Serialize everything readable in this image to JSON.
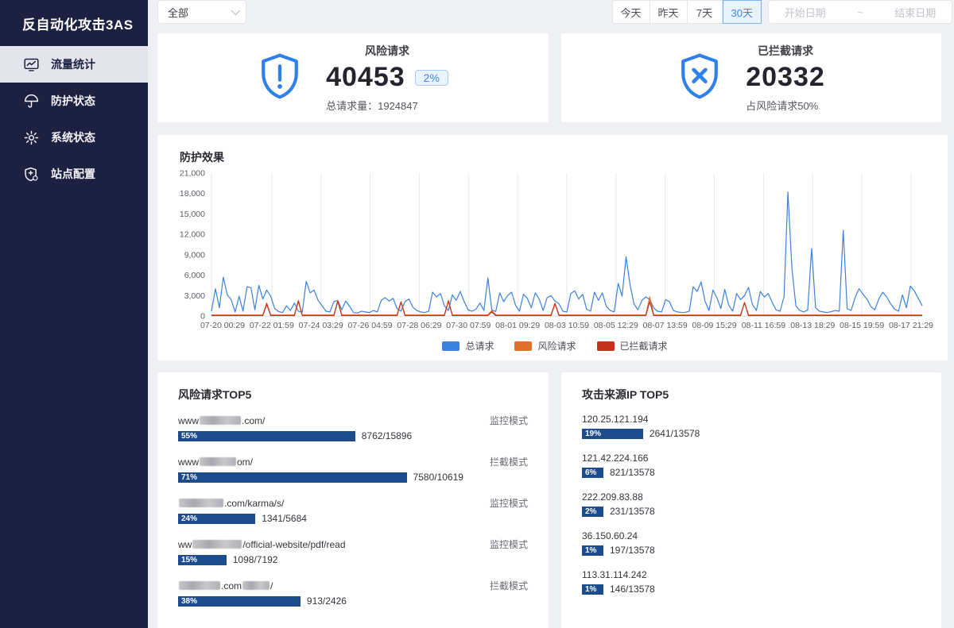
{
  "colors": {
    "accent_blue": "#3a86e8",
    "bar_navy": "#1c4c8c",
    "sidebar_bg": "#1c2142"
  },
  "sidebar": {
    "title": "反自动化攻击3AS",
    "items": [
      {
        "label": "流量统计",
        "icon": "traffic-stats-icon",
        "active": true
      },
      {
        "label": "防护状态",
        "icon": "umbrella-icon",
        "active": false
      },
      {
        "label": "系统状态",
        "icon": "gear-icon",
        "active": false
      },
      {
        "label": "站点配置",
        "icon": "site-config-icon",
        "active": false
      }
    ]
  },
  "topbar": {
    "site_filter_value": "全部",
    "range_buttons": [
      "今天",
      "昨天",
      "7天",
      "30天"
    ],
    "selected_range": "30天",
    "date_start_placeholder": "开始日期",
    "date_separator": "~",
    "date_end_placeholder": "结束日期"
  },
  "stat_cards": [
    {
      "title": "风险请求",
      "value": "40453",
      "badge": "2%",
      "subtitle": "总请求量：1924847",
      "icon": "shield-exclamation-icon"
    },
    {
      "title": "已拦截请求",
      "value": "20332",
      "subtitle": "占风险请求50%",
      "icon": "shield-x-icon"
    }
  ],
  "chart_data": {
    "type": "line",
    "title": "防护效果",
    "ylim": [
      0,
      21000
    ],
    "ytick_values": [
      0,
      3000,
      6000,
      9000,
      12000,
      15000,
      18000,
      21000
    ],
    "ytick_labels": [
      "0",
      "3,000",
      "6,000",
      "9,000",
      "12,000",
      "15,000",
      "18,000",
      "21,000"
    ],
    "x_ticks": [
      "07-20 00:29",
      "07-22 01:59",
      "07-24 03:29",
      "07-26 04:59",
      "07-28 06:29",
      "07-30 07:59",
      "08-01 09:29",
      "08-03 10:59",
      "08-05 12:29",
      "08-07 13:59",
      "08-09 15:29",
      "08-11 16:59",
      "08-13 18:29",
      "08-15 19:59",
      "08-17 21:29"
    ],
    "grid": "vertical-only",
    "legend_position": "bottom",
    "series": [
      {
        "name": "总请求",
        "color": "#3b82dd",
        "values": [
          700,
          4000,
          1200,
          5700,
          3100,
          2400,
          600,
          2900,
          700,
          4300,
          4150,
          900,
          4500,
          2500,
          3800,
          2900,
          1100,
          650,
          500,
          1500,
          800,
          1900,
          700,
          550,
          5100,
          3400,
          3800,
          2300,
          1500,
          700,
          600,
          2100,
          2300,
          900,
          2200,
          1400,
          500,
          450,
          700,
          600,
          500,
          800,
          600,
          2300,
          2700,
          2200,
          2600,
          1100,
          700,
          2100,
          2500,
          1300,
          800,
          600,
          500,
          700,
          3500,
          2800,
          3300,
          1500,
          800,
          3100,
          2300,
          3600,
          2100,
          900,
          700,
          1000,
          1900,
          800,
          5600,
          900,
          650,
          3400,
          2100,
          3000,
          3500,
          1600,
          700,
          3200,
          2600,
          1200,
          3400,
          2500,
          800,
          2700,
          3000,
          2200,
          1800,
          700,
          600,
          3300,
          3700,
          2500,
          3200,
          1000,
          700,
          3500,
          2300,
          3400,
          1400,
          800,
          600,
          4800,
          2900,
          8700,
          4600,
          1800,
          900,
          2300,
          2800,
          2400,
          1200,
          700,
          600,
          2400,
          2100,
          800,
          600,
          500,
          550,
          700,
          4300,
          3600,
          5000,
          2200,
          800,
          3800,
          2700,
          1100,
          3900,
          1600,
          700,
          3300,
          2400,
          3000,
          4200,
          1700,
          800,
          3600,
          2800,
          3300,
          2000,
          900,
          700,
          2800,
          18200,
          7000,
          1500,
          800,
          600,
          900,
          9900,
          1200,
          700,
          600,
          500,
          650,
          800,
          700,
          12600,
          1100,
          800,
          2700,
          4000,
          3200,
          2500,
          1400,
          900,
          2500,
          3500,
          2800,
          1800,
          1000,
          700,
          3100,
          1200,
          4400,
          3700,
          2600,
          1500
        ]
      },
      {
        "name": "风险请求",
        "color": "#e0702c",
        "baseline": 150,
        "spikes": [
          [
            14,
            1900
          ],
          [
            22,
            2300
          ],
          [
            32,
            2250
          ],
          [
            48,
            2100
          ],
          [
            60,
            2250
          ],
          [
            71,
            800
          ],
          [
            87,
            1900
          ],
          [
            111,
            2800
          ],
          [
            135,
            2000
          ]
        ]
      },
      {
        "name": "已拦截请求",
        "color": "#c0321c",
        "baseline": 60,
        "spikes": [
          [
            14,
            1750
          ],
          [
            22,
            2200
          ],
          [
            32,
            2150
          ],
          [
            48,
            2050
          ],
          [
            60,
            2200
          ],
          [
            71,
            600
          ],
          [
            87,
            1800
          ],
          [
            111,
            2100
          ],
          [
            135,
            1950
          ]
        ]
      }
    ]
  },
  "top5_requests": {
    "title": "风险请求TOP5",
    "bar_color": "#1c4c8c",
    "rows": [
      {
        "url": [
          [
            "t",
            "www"
          ],
          [
            "b",
            52
          ],
          [
            "t",
            ".com/"
          ]
        ],
        "percent": 55,
        "count": "8762/15896",
        "mode": "监控模式"
      },
      {
        "url": [
          [
            "t",
            "www"
          ],
          [
            "b",
            46
          ],
          [
            "t",
            "om/"
          ]
        ],
        "percent": 71,
        "count": "7580/10619",
        "mode": "拦截模式"
      },
      {
        "url": [
          [
            "b",
            56
          ],
          [
            "t",
            ".com/karma/s/"
          ]
        ],
        "percent": 24,
        "count": "1341/5684",
        "mode": "监控模式"
      },
      {
        "url": [
          [
            "t",
            "ww"
          ],
          [
            "b",
            62
          ],
          [
            "t",
            "/official-website/pdf/read"
          ]
        ],
        "percent": 15,
        "count": "1098/7192",
        "mode": "监控模式"
      },
      {
        "url": [
          [
            "b",
            52
          ],
          [
            "t",
            ".com"
          ],
          [
            "b",
            34
          ],
          [
            "t",
            "/"
          ]
        ],
        "percent": 38,
        "count": "913/2426",
        "mode": "拦截模式"
      }
    ]
  },
  "top5_ips": {
    "title": "攻击来源IP TOP5",
    "bar_color": "#1c4c8c",
    "rows": [
      {
        "ip": "120.25.121.194",
        "percent": 19,
        "count": "2641/13578"
      },
      {
        "ip": "121.42.224.166",
        "percent": 6,
        "count": "821/13578"
      },
      {
        "ip": "222.209.83.88",
        "percent": 2,
        "count": "231/13578"
      },
      {
        "ip": "36.150.60.24",
        "percent": 1,
        "count": "197/13578"
      },
      {
        "ip": "113.31.114.242",
        "percent": 1,
        "count": "146/13578"
      }
    ]
  }
}
